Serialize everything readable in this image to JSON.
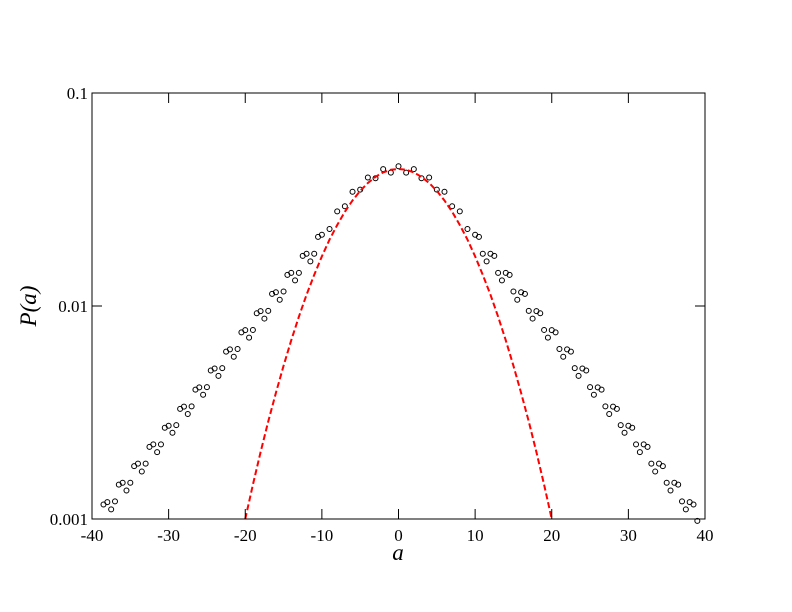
{
  "chart_data": {
    "type": "scatter",
    "x_label": "a",
    "y_label": "P(a)",
    "log_y": true,
    "xlim": [
      -40,
      40
    ],
    "xticks": [
      -40,
      -30,
      -20,
      -10,
      0,
      10,
      20,
      30,
      40
    ],
    "ylim": [
      0.001,
      0.1
    ],
    "yticks": [
      0.001,
      0.01,
      0.1
    ],
    "series": [
      {
        "type": "scatter",
        "color": "#000000",
        "x": [
          -38.5,
          -38,
          -37.5,
          -37,
          -36.5,
          -36,
          -35.5,
          -35,
          -34.5,
          -34,
          -33.5,
          -33,
          -32.5,
          -32,
          -31.5,
          -31,
          -30.5,
          -30,
          -29.5,
          -29,
          -28.5,
          -28,
          -27.5,
          -27,
          -26.5,
          -26,
          -25.5,
          -25,
          -24.5,
          -24,
          -23.5,
          -23,
          -22.5,
          -22,
          -21.5,
          -21,
          -20.5,
          -20,
          -19.5,
          -19,
          -18.5,
          -18,
          -17.5,
          -17,
          -16.5,
          -16,
          -15.5,
          -15,
          -14.5,
          -14,
          -13.5,
          -13,
          -12.5,
          -12,
          -11.5,
          -11,
          -10.5,
          -10,
          -9,
          -8,
          -7,
          -6,
          -5,
          -4,
          -3,
          -2,
          -1,
          0,
          1,
          2,
          3,
          4,
          5,
          6,
          7,
          8,
          9,
          10,
          10.5,
          11,
          11.5,
          12,
          12.5,
          13,
          13.5,
          14,
          14.5,
          15,
          15.5,
          16,
          16.5,
          17,
          17.5,
          18,
          18.5,
          19,
          19.5,
          20,
          20.5,
          21,
          21.5,
          22,
          22.5,
          23,
          23.5,
          24,
          24.5,
          25,
          25.5,
          26,
          26.5,
          27,
          27.5,
          28,
          28.5,
          29,
          29.5,
          30,
          30.5,
          31,
          31.5,
          32,
          32.5,
          33,
          33.5,
          34,
          34.5,
          35,
          35.5,
          36,
          36.5,
          37,
          37.5,
          38,
          38.5,
          39
        ],
        "values": [
          0.00117,
          0.0012,
          0.00111,
          0.00121,
          0.00145,
          0.00148,
          0.00136,
          0.00148,
          0.00177,
          0.00182,
          0.00167,
          0.00182,
          0.00218,
          0.00224,
          0.00206,
          0.00224,
          0.00268,
          0.00274,
          0.00254,
          0.00276,
          0.00329,
          0.00337,
          0.00311,
          0.00338,
          0.00405,
          0.00415,
          0.00383,
          0.00416,
          0.00498,
          0.00509,
          0.0047,
          0.00511,
          0.00611,
          0.00626,
          0.00578,
          0.00628,
          0.00752,
          0.0077,
          0.0071,
          0.00772,
          0.00924,
          0.00946,
          0.00873,
          0.00949,
          0.0114,
          0.0116,
          0.0107,
          0.0117,
          0.014,
          0.0143,
          0.0132,
          0.0143,
          0.0172,
          0.0176,
          0.0162,
          0.0176,
          0.0211,
          0.0216,
          0.023,
          0.0278,
          0.0294,
          0.0344,
          0.0352,
          0.0401,
          0.0398,
          0.0439,
          0.0423,
          0.0453,
          0.0423,
          0.0439,
          0.0398,
          0.0401,
          0.0352,
          0.0344,
          0.0294,
          0.0278,
          0.023,
          0.0216,
          0.0211,
          0.0176,
          0.0162,
          0.0176,
          0.0172,
          0.0143,
          0.0132,
          0.0143,
          0.014,
          0.0117,
          0.0107,
          0.0116,
          0.0114,
          0.00949,
          0.00873,
          0.00946,
          0.00924,
          0.00772,
          0.0071,
          0.0077,
          0.00752,
          0.00628,
          0.00578,
          0.00626,
          0.00611,
          0.00511,
          0.0047,
          0.00509,
          0.00498,
          0.00416,
          0.00383,
          0.00415,
          0.00405,
          0.00338,
          0.00311,
          0.00337,
          0.00329,
          0.00276,
          0.00254,
          0.00274,
          0.00268,
          0.00224,
          0.00206,
          0.00224,
          0.00218,
          0.00182,
          0.00167,
          0.00182,
          0.00177,
          0.00148,
          0.00136,
          0.00148,
          0.00145,
          0.00121,
          0.00111,
          0.0012,
          0.00117,
          0.00098
        ]
      },
      {
        "type": "line",
        "color": "#ff0000",
        "dashed": true,
        "x": [
          -20,
          -19,
          -18,
          -17,
          -16,
          -15,
          -14,
          -13,
          -12,
          -11,
          -10,
          -9,
          -8,
          -7,
          -6,
          -5,
          -4,
          -3,
          -2,
          -1,
          0,
          1,
          2,
          3,
          4,
          5,
          6,
          7,
          8,
          9,
          10,
          11,
          12,
          13,
          14,
          15,
          16,
          17,
          18,
          19,
          20
        ],
        "values": [
          0.001,
          0.00145,
          0.00206,
          0.00287,
          0.00391,
          0.00524,
          0.0069,
          0.00891,
          0.0113,
          0.014,
          0.0171,
          0.0205,
          0.024,
          0.0277,
          0.0313,
          0.0347,
          0.0378,
          0.0404,
          0.0424,
          0.0436,
          0.044,
          0.0436,
          0.0424,
          0.0404,
          0.0378,
          0.0347,
          0.0313,
          0.0277,
          0.024,
          0.0205,
          0.0171,
          0.014,
          0.0113,
          0.00891,
          0.0069,
          0.00524,
          0.00391,
          0.00287,
          0.00206,
          0.00145,
          0.001
        ]
      }
    ]
  }
}
